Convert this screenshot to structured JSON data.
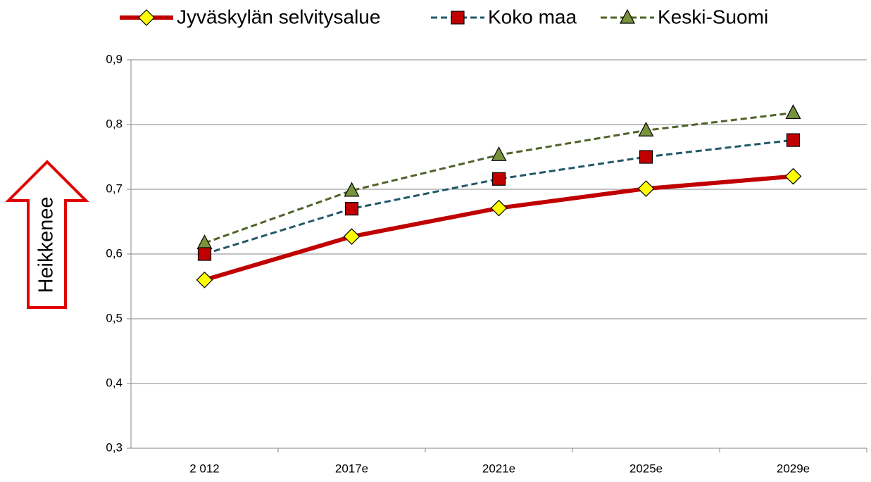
{
  "chart_data": {
    "type": "line",
    "annotation": "Heikkenee",
    "categories": [
      "2 012",
      "2017e",
      "2021e",
      "2025e",
      "2029e"
    ],
    "series": [
      {
        "name": "Jyväskylän selvitysalue",
        "color": "#c00000",
        "marker": "diamond",
        "marker_color": "#ffff00",
        "dashed": false,
        "values": [
          0.56,
          0.627,
          0.671,
          0.701,
          0.72
        ]
      },
      {
        "name": "Koko maa",
        "color": "#215868",
        "marker": "square",
        "marker_color": "#c00000",
        "dashed": true,
        "values": [
          0.6,
          0.67,
          0.716,
          0.75,
          0.776
        ]
      },
      {
        "name": "Keski-Suomi",
        "color": "#4f6228",
        "marker": "triangle",
        "marker_color": "#77933c",
        "dashed": true,
        "values": [
          0.617,
          0.698,
          0.753,
          0.791,
          0.818
        ]
      }
    ],
    "ylim": [
      0.3,
      0.9
    ],
    "yticks": [
      {
        "value": 0.3,
        "label": "0,3"
      },
      {
        "value": 0.4,
        "label": "0,4"
      },
      {
        "value": 0.5,
        "label": "0,5"
      },
      {
        "value": 0.6,
        "label": "0,6"
      },
      {
        "value": 0.7,
        "label": "0,7"
      },
      {
        "value": 0.8,
        "label": "0,8"
      },
      {
        "value": 0.9,
        "label": "0,9"
      }
    ],
    "grid": true,
    "legend": "top"
  }
}
